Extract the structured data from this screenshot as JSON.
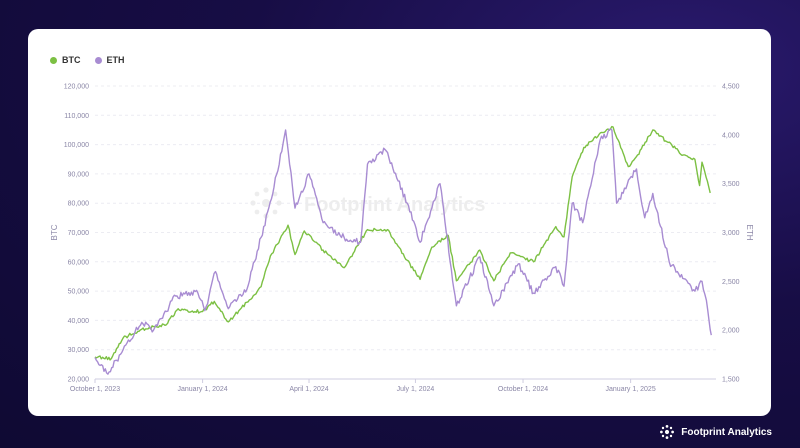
{
  "brand": {
    "name": "Footprint Analytics",
    "watermark": "Footprint Analytics"
  },
  "colors": {
    "btc": "#7cc043",
    "eth": "#a88cd2"
  },
  "chart_data": {
    "type": "line",
    "x_axis": {
      "ticks": [
        "October 1, 2023",
        "January 1, 2024",
        "April 1, 2024",
        "July 1, 2024",
        "October 1, 2024",
        "January 1, 2025"
      ],
      "range": [
        "2023-10-01",
        "2025-03-15"
      ]
    },
    "y_left": {
      "label": "BTC",
      "ticks": [
        "20,000",
        "30,000",
        "40,000",
        "50,000",
        "60,000",
        "70,000",
        "80,000",
        "90,000",
        "100,000",
        "110,000",
        "120,000"
      ],
      "range": [
        20000,
        120000
      ]
    },
    "y_right": {
      "label": "ETH",
      "ticks": [
        "1,500",
        "2,000",
        "2,500",
        "3,000",
        "3,500",
        "4,000",
        "4,500"
      ],
      "range": [
        1500,
        4500
      ]
    },
    "legend": {
      "placement": "top-left"
    },
    "grid": true,
    "series": [
      {
        "name": "BTC",
        "axis": "left",
        "color": "#7cc043",
        "points": [
          [
            "2023-10-01",
            27500
          ],
          [
            "2023-10-15",
            27000
          ],
          [
            "2023-10-25",
            34000
          ],
          [
            "2023-11-10",
            37000
          ],
          [
            "2023-12-01",
            38500
          ],
          [
            "2023-12-10",
            43500
          ],
          [
            "2024-01-01",
            43000
          ],
          [
            "2024-01-11",
            46500
          ],
          [
            "2024-01-23",
            39500
          ],
          [
            "2024-02-10",
            47000
          ],
          [
            "2024-02-20",
            51500
          ],
          [
            "2024-02-28",
            62000
          ],
          [
            "2024-03-05",
            66000
          ],
          [
            "2024-03-14",
            72500
          ],
          [
            "2024-03-20",
            62500
          ],
          [
            "2024-03-28",
            70500
          ],
          [
            "2024-04-13",
            64000
          ],
          [
            "2024-05-01",
            58000
          ],
          [
            "2024-05-21",
            71000
          ],
          [
            "2024-06-07",
            71000
          ],
          [
            "2024-06-24",
            60500
          ],
          [
            "2024-07-05",
            54000
          ],
          [
            "2024-07-15",
            65000
          ],
          [
            "2024-07-29",
            69000
          ],
          [
            "2024-08-05",
            53500
          ],
          [
            "2024-08-25",
            64000
          ],
          [
            "2024-09-06",
            53500
          ],
          [
            "2024-09-20",
            63000
          ],
          [
            "2024-10-10",
            60000
          ],
          [
            "2024-10-29",
            72000
          ],
          [
            "2024-11-05",
            68500
          ],
          [
            "2024-11-12",
            89000
          ],
          [
            "2024-11-22",
            99000
          ],
          [
            "2024-12-05",
            103500
          ],
          [
            "2024-12-17",
            106000
          ],
          [
            "2024-12-30",
            92500
          ],
          [
            "2025-01-07",
            96500
          ],
          [
            "2025-01-20",
            105000
          ],
          [
            "2025-02-01",
            101000
          ],
          [
            "2025-02-15",
            96500
          ],
          [
            "2025-02-25",
            95000
          ],
          [
            "2025-03-01",
            86000
          ],
          [
            "2025-03-03",
            94000
          ],
          [
            "2025-03-10",
            83500
          ]
        ]
      },
      {
        "name": "ETH",
        "axis": "right",
        "color": "#a88cd2",
        "points": [
          [
            "2023-10-01",
            1720
          ],
          [
            "2023-10-12",
            1550
          ],
          [
            "2023-10-25",
            1800
          ],
          [
            "2023-11-10",
            2080
          ],
          [
            "2023-11-20",
            2000
          ],
          [
            "2023-12-09",
            2350
          ],
          [
            "2023-12-28",
            2380
          ],
          [
            "2024-01-03",
            2200
          ],
          [
            "2024-01-12",
            2600
          ],
          [
            "2024-01-23",
            2220
          ],
          [
            "2024-02-08",
            2420
          ],
          [
            "2024-02-20",
            2950
          ],
          [
            "2024-03-01",
            3400
          ],
          [
            "2024-03-12",
            4050
          ],
          [
            "2024-03-20",
            3250
          ],
          [
            "2024-04-01",
            3600
          ],
          [
            "2024-04-13",
            3100
          ],
          [
            "2024-05-01",
            2950
          ],
          [
            "2024-05-15",
            2900
          ],
          [
            "2024-05-21",
            3700
          ],
          [
            "2024-06-05",
            3850
          ],
          [
            "2024-06-24",
            3300
          ],
          [
            "2024-07-05",
            2900
          ],
          [
            "2024-07-22",
            3500
          ],
          [
            "2024-08-05",
            2250
          ],
          [
            "2024-08-25",
            2750
          ],
          [
            "2024-09-06",
            2250
          ],
          [
            "2024-09-27",
            2680
          ],
          [
            "2024-10-10",
            2380
          ],
          [
            "2024-10-29",
            2650
          ],
          [
            "2024-11-05",
            2450
          ],
          [
            "2024-11-12",
            3300
          ],
          [
            "2024-11-21",
            3100
          ],
          [
            "2024-12-06",
            3950
          ],
          [
            "2024-12-16",
            4050
          ],
          [
            "2024-12-20",
            3300
          ],
          [
            "2025-01-06",
            3650
          ],
          [
            "2025-01-13",
            3150
          ],
          [
            "2025-01-20",
            3400
          ],
          [
            "2025-02-03",
            2700
          ],
          [
            "2025-02-10",
            2600
          ],
          [
            "2025-02-25",
            2400
          ],
          [
            "2025-03-03",
            2500
          ],
          [
            "2025-03-08",
            2200
          ],
          [
            "2025-03-11",
            1950
          ]
        ]
      }
    ]
  }
}
